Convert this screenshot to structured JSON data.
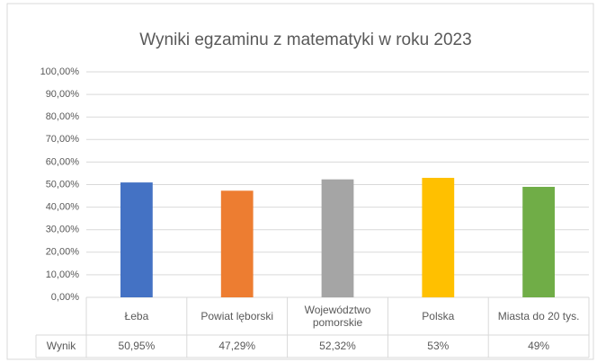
{
  "chart_data": {
    "type": "bar",
    "title": "Wyniki egzaminu z matematyki w roku 2023",
    "categories": [
      "Łeba",
      "Powiat lęborski",
      "Województwo pomorskie",
      "Polska",
      "Miasta do 20 tys."
    ],
    "series": [
      {
        "name": "Wynik",
        "colors": [
          "#4472c4",
          "#ed7d31",
          "#a5a5a5",
          "#ffc000",
          "#70ad47"
        ],
        "values": [
          50.95,
          47.29,
          52.32,
          53,
          49
        ],
        "value_labels": [
          "50,95%",
          "47,29%",
          "52,32%",
          "53%",
          "49%"
        ]
      }
    ],
    "ylim": [
      0,
      100
    ],
    "yticks": [
      {
        "value": 0,
        "label": "0,00%"
      },
      {
        "value": 10,
        "label": "10,00%"
      },
      {
        "value": 20,
        "label": "20,00%"
      },
      {
        "value": 30,
        "label": "30,00%"
      },
      {
        "value": 40,
        "label": "40,00%"
      },
      {
        "value": 50,
        "label": "50,00%"
      },
      {
        "value": 60,
        "label": "60,00%"
      },
      {
        "value": 70,
        "label": "70,00%"
      },
      {
        "value": 80,
        "label": "80,00%"
      },
      {
        "value": 90,
        "label": "90,00%"
      },
      {
        "value": 100,
        "label": "100,00%"
      }
    ],
    "grid": true,
    "data_table": true
  }
}
